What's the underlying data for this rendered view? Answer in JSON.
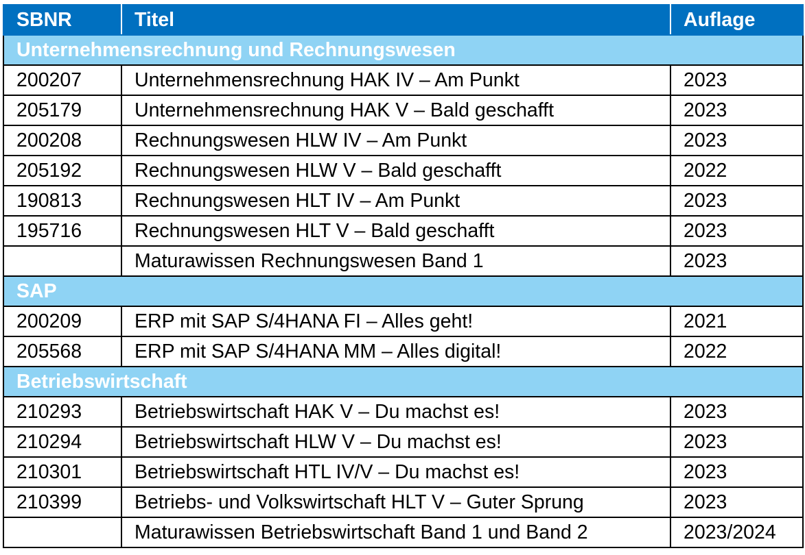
{
  "table": {
    "headers": [
      "SBNR",
      "Titel",
      "Auflage"
    ],
    "sections": [
      {
        "title": "Unternehmensrechnung und Rechnungswesen",
        "rows": [
          {
            "sbnr": "200207",
            "titel": "Unternehmensrechnung HAK IV – Am Punkt",
            "auflage": "2023"
          },
          {
            "sbnr": "205179",
            "titel": "Unternehmensrechnung HAK V – Bald geschafft",
            "auflage": "2023"
          },
          {
            "sbnr": "200208",
            "titel": "Rechnungswesen HLW IV – Am Punkt",
            "auflage": "2023"
          },
          {
            "sbnr": "205192",
            "titel": "Rechnungswesen HLW V – Bald geschafft",
            "auflage": "2022"
          },
          {
            "sbnr": "190813",
            "titel": "Rechnungswesen HLT IV – Am Punkt",
            "auflage": "2023"
          },
          {
            "sbnr": "195716",
            "titel": "Rechnungswesen HLT V – Bald geschafft",
            "auflage": "2023"
          },
          {
            "sbnr": "",
            "titel": "Maturawissen Rechnungswesen Band 1",
            "auflage": "2023"
          }
        ]
      },
      {
        "title": "SAP",
        "rows": [
          {
            "sbnr": "200209",
            "titel": "ERP mit SAP S/4HANA FI – Alles geht!",
            "auflage": "2021"
          },
          {
            "sbnr": "205568",
            "titel": "ERP mit SAP S/4HANA MM – Alles digital!",
            "auflage": "2022"
          }
        ]
      },
      {
        "title": "Betriebswirtschaft",
        "rows": [
          {
            "sbnr": "210293",
            "titel": "Betriebswirtschaft HAK V – Du machst es!",
            "auflage": "2023"
          },
          {
            "sbnr": "210294",
            "titel": "Betriebswirtschaft HLW V – Du machst es!",
            "auflage": "2023"
          },
          {
            "sbnr": "210301",
            "titel": "Betriebswirtschaft HTL IV/V – Du machst es!",
            "auflage": "2023"
          },
          {
            "sbnr": "210399",
            "titel": "Betriebs- und Volkswirtschaft HLT V – Guter Sprung",
            "auflage": "2023"
          },
          {
            "sbnr": "",
            "titel": "Maturawissen Betriebswirtschaft Band 1 und Band 2",
            "auflage": "2023/2024"
          }
        ]
      }
    ]
  }
}
